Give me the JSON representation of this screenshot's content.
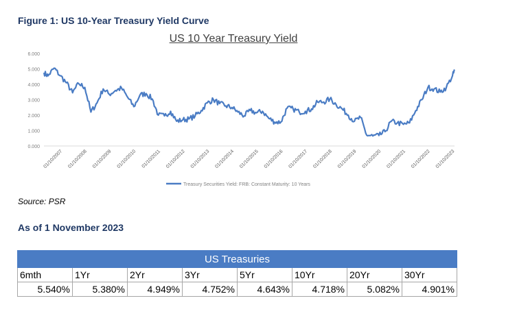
{
  "figure_title": "Figure 1: US 10-Year Treasury Yield Curve",
  "source": "Source: PSR",
  "as_of": "As of 1 November 2023",
  "table": {
    "title": "US Treasuries",
    "headers": [
      "6mth",
      "1Yr",
      "2Yr",
      "3Yr",
      "5Yr",
      "10Yr",
      "20Yr",
      "30Yr"
    ],
    "values": [
      "5.540%",
      "5.380%",
      "4.949%",
      "4.752%",
      "4.643%",
      "4.718%",
      "5.082%",
      "4.901%"
    ]
  },
  "colors": {
    "line": "#4a7cc4",
    "header_text": "#1f3864",
    "banner": "#4a7cc4"
  },
  "chart_data": {
    "type": "line",
    "title": "US 10 Year Treasury Yield",
    "xlabel": "",
    "ylabel": "",
    "ylim": [
      0,
      6
    ],
    "yticks": [
      "0.000",
      "1.000",
      "2.000",
      "3.000",
      "4.000",
      "5.000",
      "6.000"
    ],
    "xticks": [
      "01/10/2007",
      "01/10/2008",
      "01/10/2009",
      "01/10/2010",
      "01/10/2011",
      "01/10/2012",
      "01/10/2013",
      "01/10/2014",
      "01/10/2015",
      "01/10/2016",
      "01/10/2017",
      "01/10/2018",
      "01/10/2019",
      "01/10/2020",
      "01/10/2021",
      "01/10/2022",
      "01/10/2023"
    ],
    "legend_position": "bottom",
    "grid": false,
    "series": [
      {
        "name": "Treasury Securities Yield: FRB: Constant Maturity: 10 Years",
        "x": [
          "2007-01",
          "2007-03",
          "2007-06",
          "2007-09",
          "2007-12",
          "2008-03",
          "2008-06",
          "2008-09",
          "2008-12",
          "2009-03",
          "2009-06",
          "2009-09",
          "2009-12",
          "2010-03",
          "2010-06",
          "2010-09",
          "2010-12",
          "2011-03",
          "2011-06",
          "2011-09",
          "2011-12",
          "2012-03",
          "2012-06",
          "2012-09",
          "2012-12",
          "2013-03",
          "2013-06",
          "2013-09",
          "2013-12",
          "2014-03",
          "2014-06",
          "2014-09",
          "2014-12",
          "2015-03",
          "2015-06",
          "2015-09",
          "2015-12",
          "2016-03",
          "2016-06",
          "2016-09",
          "2016-12",
          "2017-03",
          "2017-06",
          "2017-09",
          "2017-12",
          "2018-03",
          "2018-06",
          "2018-09",
          "2018-12",
          "2019-03",
          "2019-06",
          "2019-09",
          "2019-12",
          "2020-03",
          "2020-06",
          "2020-09",
          "2020-12",
          "2021-03",
          "2021-06",
          "2021-09",
          "2021-12",
          "2022-03",
          "2022-06",
          "2022-09",
          "2022-12",
          "2023-03",
          "2023-06",
          "2023-09",
          "2023-10"
        ],
        "values": [
          4.75,
          4.55,
          5.05,
          4.55,
          4.1,
          3.45,
          4.05,
          3.8,
          2.2,
          2.8,
          3.7,
          3.35,
          3.6,
          3.75,
          3.15,
          2.55,
          3.3,
          3.4,
          3.05,
          2.0,
          1.95,
          2.25,
          1.6,
          1.7,
          1.75,
          1.95,
          2.3,
          2.8,
          3.0,
          2.75,
          2.6,
          2.5,
          2.2,
          1.95,
          2.3,
          2.15,
          2.25,
          1.8,
          1.55,
          1.55,
          2.45,
          2.4,
          2.2,
          2.25,
          2.4,
          2.85,
          2.85,
          3.05,
          2.7,
          2.4,
          2.0,
          1.6,
          1.85,
          0.7,
          0.65,
          0.68,
          0.93,
          1.6,
          1.5,
          1.4,
          1.5,
          2.3,
          3.0,
          3.8,
          3.7,
          3.5,
          3.8,
          4.55,
          4.88
        ]
      }
    ]
  }
}
